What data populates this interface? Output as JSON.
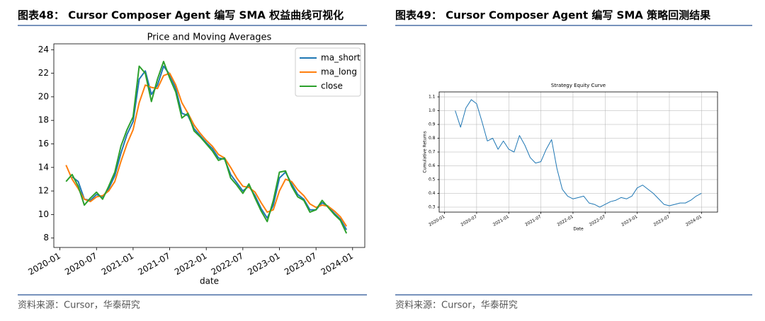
{
  "figures": [
    {
      "header": "图表48： Cursor Composer Agent 编写 SMA 权益曲线可视化",
      "source": "资料来源：Cursor，华泰研究"
    },
    {
      "header": "图表49： Cursor Composer Agent 编写 SMA 策略回测结果",
      "source": "资料来源：Cursor，华泰研究"
    }
  ],
  "chart_data": [
    {
      "type": "line",
      "title": "Price and Moving Averages",
      "x_label": "date",
      "grid": false,
      "legend": "upper right",
      "x": [
        "2020-02",
        "2020-03",
        "2020-04",
        "2020-05",
        "2020-06",
        "2020-07",
        "2020-08",
        "2020-09",
        "2020-10",
        "2020-11",
        "2020-12",
        "2021-01",
        "2021-02",
        "2021-03",
        "2021-04",
        "2021-05",
        "2021-06",
        "2021-07",
        "2021-08",
        "2021-09",
        "2021-10",
        "2021-11",
        "2021-12",
        "2022-01",
        "2022-02",
        "2022-03",
        "2022-04",
        "2022-05",
        "2022-06",
        "2022-07",
        "2022-08",
        "2022-09",
        "2022-10",
        "2022-11",
        "2022-12",
        "2023-01",
        "2023-02",
        "2023-03",
        "2023-04",
        "2023-05",
        "2023-06",
        "2023-07",
        "2023-08",
        "2023-09",
        "2023-10",
        "2023-11",
        "2023-12"
      ],
      "series": [
        {
          "name": "ma_short",
          "color": "#1f77b4",
          "values": [
            null,
            13.2,
            12.8,
            11.3,
            11.2,
            11.7,
            11.5,
            12.2,
            13.3,
            15.2,
            16.8,
            17.9,
            21.5,
            22.2,
            20.2,
            21.0,
            22.6,
            21.9,
            20.7,
            18.6,
            18.4,
            17.3,
            16.7,
            16.1,
            15.6,
            14.8,
            14.7,
            13.4,
            12.7,
            12.0,
            12.4,
            11.6,
            10.5,
            9.7,
            10.8,
            13.1,
            13.6,
            12.6,
            11.7,
            11.3,
            10.4,
            10.4,
            11.0,
            10.7,
            10.1,
            9.6,
            8.7
          ]
        },
        {
          "name": "ma_long",
          "color": "#ff7f0e",
          "values": [
            14.2,
            13.0,
            12.2,
            11.3,
            11.1,
            11.5,
            11.6,
            12.0,
            12.8,
            14.5,
            16.0,
            17.2,
            19.5,
            21.0,
            20.8,
            20.7,
            21.8,
            22.0,
            21.0,
            19.5,
            18.6,
            17.6,
            16.9,
            16.3,
            15.8,
            15.1,
            14.8,
            14.0,
            13.1,
            12.4,
            12.3,
            11.9,
            11.0,
            10.2,
            10.4,
            12.0,
            13.0,
            12.8,
            12.1,
            11.6,
            10.9,
            10.6,
            10.8,
            10.7,
            10.3,
            9.8,
            9.0
          ]
        },
        {
          "name": "close",
          "color": "#2ca02c",
          "values": [
            12.8,
            13.4,
            12.4,
            10.8,
            11.4,
            11.9,
            11.3,
            12.4,
            13.6,
            15.8,
            17.2,
            18.3,
            22.6,
            22.0,
            19.6,
            21.5,
            23.0,
            21.6,
            20.4,
            18.2,
            18.6,
            17.1,
            16.6,
            16.0,
            15.4,
            14.6,
            14.8,
            13.1,
            12.5,
            11.8,
            12.6,
            11.4,
            10.3,
            9.4,
            11.2,
            13.6,
            13.7,
            12.4,
            11.5,
            11.2,
            10.2,
            10.4,
            11.2,
            10.6,
            10.0,
            9.5,
            8.4
          ]
        }
      ],
      "xlim": [
        "2019-12",
        "2024-03"
      ],
      "xticks": [
        "2020-01",
        "2020-07",
        "2021-01",
        "2021-07",
        "2022-01",
        "2022-07",
        "2023-01",
        "2023-07",
        "2024-01"
      ],
      "ylim": [
        7.2,
        24.5
      ],
      "yticks": [
        8,
        10,
        12,
        14,
        16,
        18,
        20,
        22,
        24
      ]
    },
    {
      "type": "line",
      "title": "Strategy Equity Curve",
      "x_label": "Date",
      "y_label": "Cumulative Returns",
      "grid": true,
      "x": [
        "2020-03",
        "2020-04",
        "2020-05",
        "2020-06",
        "2020-07",
        "2020-08",
        "2020-09",
        "2020-10",
        "2020-11",
        "2020-12",
        "2021-01",
        "2021-02",
        "2021-03",
        "2021-04",
        "2021-05",
        "2021-06",
        "2021-07",
        "2021-08",
        "2021-09",
        "2021-10",
        "2021-11",
        "2021-12",
        "2022-01",
        "2022-02",
        "2022-03",
        "2022-04",
        "2022-05",
        "2022-06",
        "2022-07",
        "2022-08",
        "2022-09",
        "2022-10",
        "2022-11",
        "2022-12",
        "2023-01",
        "2023-02",
        "2023-03",
        "2023-04",
        "2023-05",
        "2023-06",
        "2023-07",
        "2023-08",
        "2023-09",
        "2023-10",
        "2023-11",
        "2023-12",
        "2024-01"
      ],
      "series": [
        {
          "color": "#1f77b4",
          "values": [
            1.0,
            0.88,
            1.02,
            1.08,
            1.05,
            0.92,
            0.78,
            0.8,
            0.72,
            0.78,
            0.72,
            0.7,
            0.82,
            0.75,
            0.66,
            0.62,
            0.63,
            0.72,
            0.79,
            0.58,
            0.43,
            0.38,
            0.36,
            0.37,
            0.38,
            0.33,
            0.32,
            0.3,
            0.32,
            0.34,
            0.35,
            0.37,
            0.36,
            0.38,
            0.44,
            0.46,
            0.43,
            0.4,
            0.36,
            0.32,
            0.31,
            0.32,
            0.33,
            0.33,
            0.35,
            0.38,
            0.4
          ]
        }
      ],
      "xlim": [
        "2019-12",
        "2024-04"
      ],
      "xticks": [
        "2020-01",
        "2020-07",
        "2021-01",
        "2021-07",
        "2022-01",
        "2022-07",
        "2023-01",
        "2023-07",
        "2024-01"
      ],
      "ylim": [
        0.264,
        1.136
      ],
      "yticks": [
        0.3,
        0.4,
        0.5,
        0.6,
        0.7,
        0.8,
        0.9,
        {
          "value": 1,
          "label": "1.0"
        },
        1.1
      ]
    }
  ]
}
